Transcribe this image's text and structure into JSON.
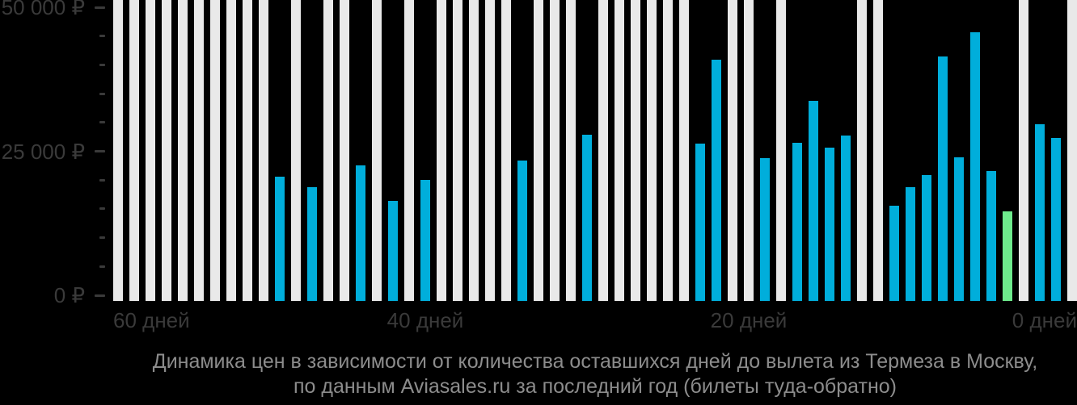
{
  "chart_data": {
    "type": "bar",
    "title_line1": "Динамика цен в зависимости от количества оставшихся дней до вылета из Термеза в Москву,",
    "title_line2": "по данным Aviasales.ru за последний год (билеты туда-обратно)",
    "currency": "₽",
    "ylim": [
      0,
      50000
    ],
    "grid": "off",
    "legend": "none",
    "y_axis": {
      "major_ticks": [
        {
          "value": 0,
          "label": "0 ₽"
        },
        {
          "value": 25000,
          "label": "25 000 ₽"
        },
        {
          "value": 50000,
          "label": "50 000 ₽"
        }
      ],
      "minor_tick_values": [
        5000,
        10000,
        15000,
        20000,
        30000,
        35000,
        40000,
        45000
      ]
    },
    "x_axis": {
      "unit": "дней до вылета",
      "direction": "days counting down, left 60 to right 0",
      "ticks": [
        {
          "day": 60,
          "label": "60 дней",
          "align": "left"
        },
        {
          "day": 40,
          "label": "40 дней",
          "align": "center"
        },
        {
          "day": 20,
          "label": "20 дней",
          "align": "center"
        },
        {
          "day": 0,
          "label": "0 дней",
          "align": "right"
        }
      ]
    },
    "bars": [
      {
        "day": 59,
        "value": null
      },
      {
        "day": 58,
        "value": null
      },
      {
        "day": 57,
        "value": null
      },
      {
        "day": 56,
        "value": null
      },
      {
        "day": 55,
        "value": null
      },
      {
        "day": 54,
        "value": null
      },
      {
        "day": 53,
        "value": null
      },
      {
        "day": 52,
        "value": null
      },
      {
        "day": 51,
        "value": null
      },
      {
        "day": 50,
        "value": null
      },
      {
        "day": 49,
        "value": 20600
      },
      {
        "day": 48,
        "value": null
      },
      {
        "day": 47,
        "value": 18800
      },
      {
        "day": 46,
        "value": null
      },
      {
        "day": 45,
        "value": null
      },
      {
        "day": 44,
        "value": 22600
      },
      {
        "day": 43,
        "value": null
      },
      {
        "day": 42,
        "value": 16400
      },
      {
        "day": 41,
        "value": null
      },
      {
        "day": 40,
        "value": 20000
      },
      {
        "day": 39,
        "value": null
      },
      {
        "day": 38,
        "value": null
      },
      {
        "day": 37,
        "value": null
      },
      {
        "day": 36,
        "value": null
      },
      {
        "day": 35,
        "value": null
      },
      {
        "day": 34,
        "value": 23400
      },
      {
        "day": 33,
        "value": null
      },
      {
        "day": 32,
        "value": null
      },
      {
        "day": 31,
        "value": null
      },
      {
        "day": 30,
        "value": 27900
      },
      {
        "day": 29,
        "value": null
      },
      {
        "day": 28,
        "value": null
      },
      {
        "day": 27,
        "value": null
      },
      {
        "day": 26,
        "value": null
      },
      {
        "day": 25,
        "value": null
      },
      {
        "day": 24,
        "value": null
      },
      {
        "day": 23,
        "value": 26300
      },
      {
        "day": 22,
        "value": 40900
      },
      {
        "day": 21,
        "value": null
      },
      {
        "day": 20,
        "value": null
      },
      {
        "day": 19,
        "value": 23800
      },
      {
        "day": 18,
        "value": null
      },
      {
        "day": 17,
        "value": 26500
      },
      {
        "day": 16,
        "value": 33700
      },
      {
        "day": 15,
        "value": 25600
      },
      {
        "day": 14,
        "value": 27700
      },
      {
        "day": 13,
        "value": null
      },
      {
        "day": 12,
        "value": null
      },
      {
        "day": 11,
        "value": 15500
      },
      {
        "day": 10,
        "value": 18700
      },
      {
        "day": 9,
        "value": 20800
      },
      {
        "day": 8,
        "value": 41500
      },
      {
        "day": 7,
        "value": 23900
      },
      {
        "day": 6,
        "value": 45700
      },
      {
        "day": 5,
        "value": 21500
      },
      {
        "day": 4,
        "value": 14500,
        "highlight": true
      },
      {
        "day": 3,
        "value": null
      },
      {
        "day": 2,
        "value": 29700
      },
      {
        "day": 1,
        "value": 27300
      },
      {
        "day": 0,
        "value": null
      }
    ],
    "colors": {
      "background": "#000000",
      "bar_no_data": "#E9E9E9",
      "bar_price": "#00AEDB",
      "bar_lowest": "#6EEB8C",
      "axis_text": "#3A3A3A",
      "title_text": "#8C8C8C"
    }
  }
}
